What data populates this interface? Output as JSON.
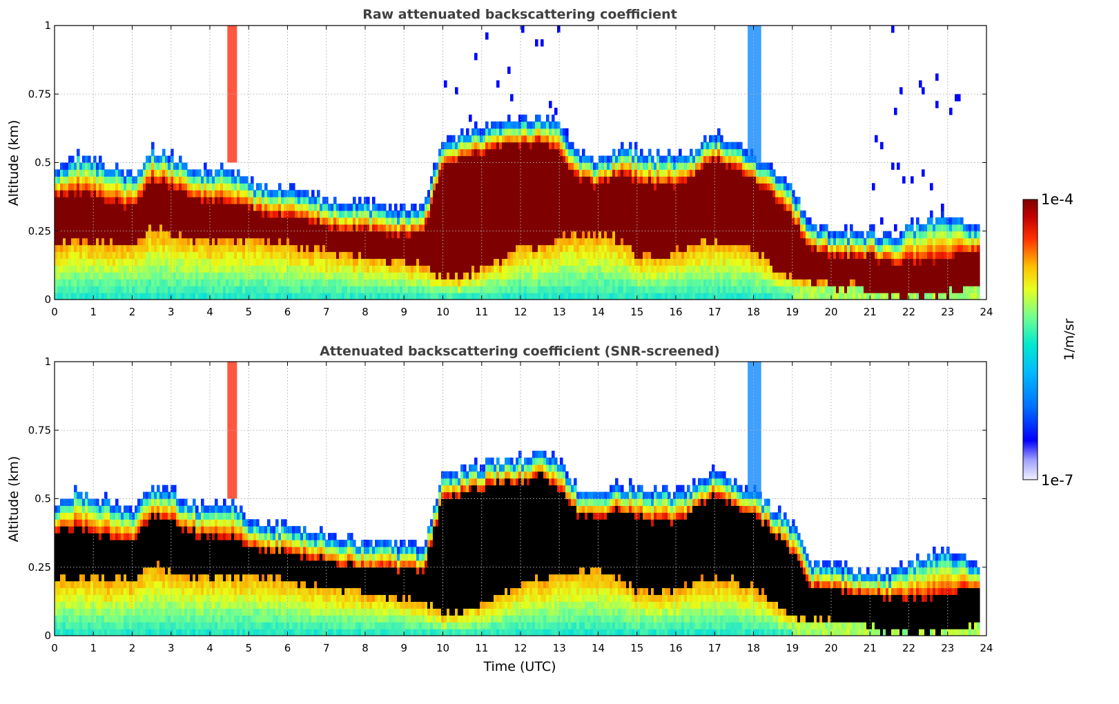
{
  "chart_data": [
    {
      "type": "heatmap",
      "title": "Raw attenuated backscattering coefficient",
      "xlabel": "",
      "ylabel": "Altitude (km)",
      "xlim": [
        0,
        24
      ],
      "ylim": [
        0,
        1
      ],
      "x_ticks": [
        "0",
        "1",
        "2",
        "3",
        "4",
        "5",
        "6",
        "7",
        "8",
        "9",
        "10",
        "11",
        "12",
        "13",
        "14",
        "15",
        "16",
        "17",
        "18",
        "19",
        "20",
        "21",
        "22",
        "23",
        "24"
      ],
      "y_ticks": [
        "0",
        "0.25",
        "0.5",
        "0.75",
        "1"
      ],
      "grid": true,
      "color_scale": "log",
      "screened": false
    },
    {
      "type": "heatmap",
      "title": "Attenuated backscattering coefficient (SNR-screened)",
      "xlabel": "Time (UTC)",
      "ylabel": "Altitude (km)",
      "xlim": [
        0,
        24
      ],
      "ylim": [
        0,
        1
      ],
      "x_ticks": [
        "0",
        "1",
        "2",
        "3",
        "4",
        "5",
        "6",
        "7",
        "8",
        "9",
        "10",
        "11",
        "12",
        "13",
        "14",
        "15",
        "16",
        "17",
        "18",
        "19",
        "20",
        "21",
        "22",
        "23",
        "24"
      ],
      "y_ticks": [
        "0",
        "0.25",
        "0.5",
        "0.75",
        "1"
      ],
      "grid": true,
      "color_scale": "log",
      "screened": true
    }
  ],
  "colorbar": {
    "label": "1/m/sr",
    "max_label": "1e-4",
    "min_label": "1e-7",
    "colormap": "jet",
    "high_color": "#7f0000",
    "low_color": "#e6e6ff"
  },
  "layer_profile": {
    "description_units": "Time (UTC) in hours vs altitude in km",
    "time": [
      0,
      0.5,
      1,
      1.5,
      2,
      2.5,
      3,
      3.5,
      4,
      4.5,
      5,
      5.5,
      6,
      6.5,
      7,
      7.5,
      8,
      8.5,
      9,
      9.5,
      10,
      10.5,
      11,
      11.5,
      12,
      12.5,
      13,
      13.5,
      14,
      14.5,
      15,
      15.5,
      16,
      16.5,
      17,
      17.5,
      18,
      18.5,
      19,
      19.5,
      20,
      20.5,
      21,
      21.5,
      22,
      22.5,
      23,
      23.5,
      23.8
    ],
    "bl_top": [
      0.44,
      0.5,
      0.48,
      0.46,
      0.42,
      0.52,
      0.5,
      0.46,
      0.44,
      0.46,
      0.4,
      0.38,
      0.37,
      0.36,
      0.34,
      0.33,
      0.32,
      0.32,
      0.3,
      0.3,
      0.56,
      0.58,
      0.6,
      0.62,
      0.62,
      0.64,
      0.62,
      0.5,
      0.48,
      0.52,
      0.52,
      0.5,
      0.5,
      0.52,
      0.58,
      0.54,
      0.5,
      0.44,
      0.38,
      0.24,
      0.23,
      0.22,
      0.22,
      0.2,
      0.24,
      0.26,
      0.28,
      0.26,
      0.24
    ],
    "dark_top": [
      0.38,
      0.4,
      0.38,
      0.36,
      0.34,
      0.44,
      0.42,
      0.38,
      0.36,
      0.36,
      0.33,
      0.31,
      0.3,
      0.29,
      0.27,
      0.26,
      0.25,
      0.25,
      0.24,
      0.24,
      0.5,
      0.52,
      0.54,
      0.56,
      0.56,
      0.58,
      0.54,
      0.44,
      0.42,
      0.46,
      0.44,
      0.42,
      0.42,
      0.46,
      0.52,
      0.48,
      0.44,
      0.38,
      0.3,
      0.18,
      0.17,
      0.16,
      0.16,
      0.14,
      0.14,
      0.14,
      0.15,
      0.18,
      0.18
    ],
    "dark_bottom": [
      0.2,
      0.22,
      0.21,
      0.2,
      0.2,
      0.26,
      0.24,
      0.22,
      0.22,
      0.22,
      0.22,
      0.21,
      0.2,
      0.19,
      0.18,
      0.17,
      0.16,
      0.15,
      0.14,
      0.13,
      0.08,
      0.08,
      0.12,
      0.14,
      0.2,
      0.2,
      0.22,
      0.24,
      0.24,
      0.22,
      0.16,
      0.15,
      0.18,
      0.2,
      0.22,
      0.2,
      0.18,
      0.12,
      0.08,
      0.06,
      0.05,
      0.05,
      0.04,
      0.01,
      0.01,
      0.01,
      0.02,
      0.04,
      0.04
    ]
  }
}
